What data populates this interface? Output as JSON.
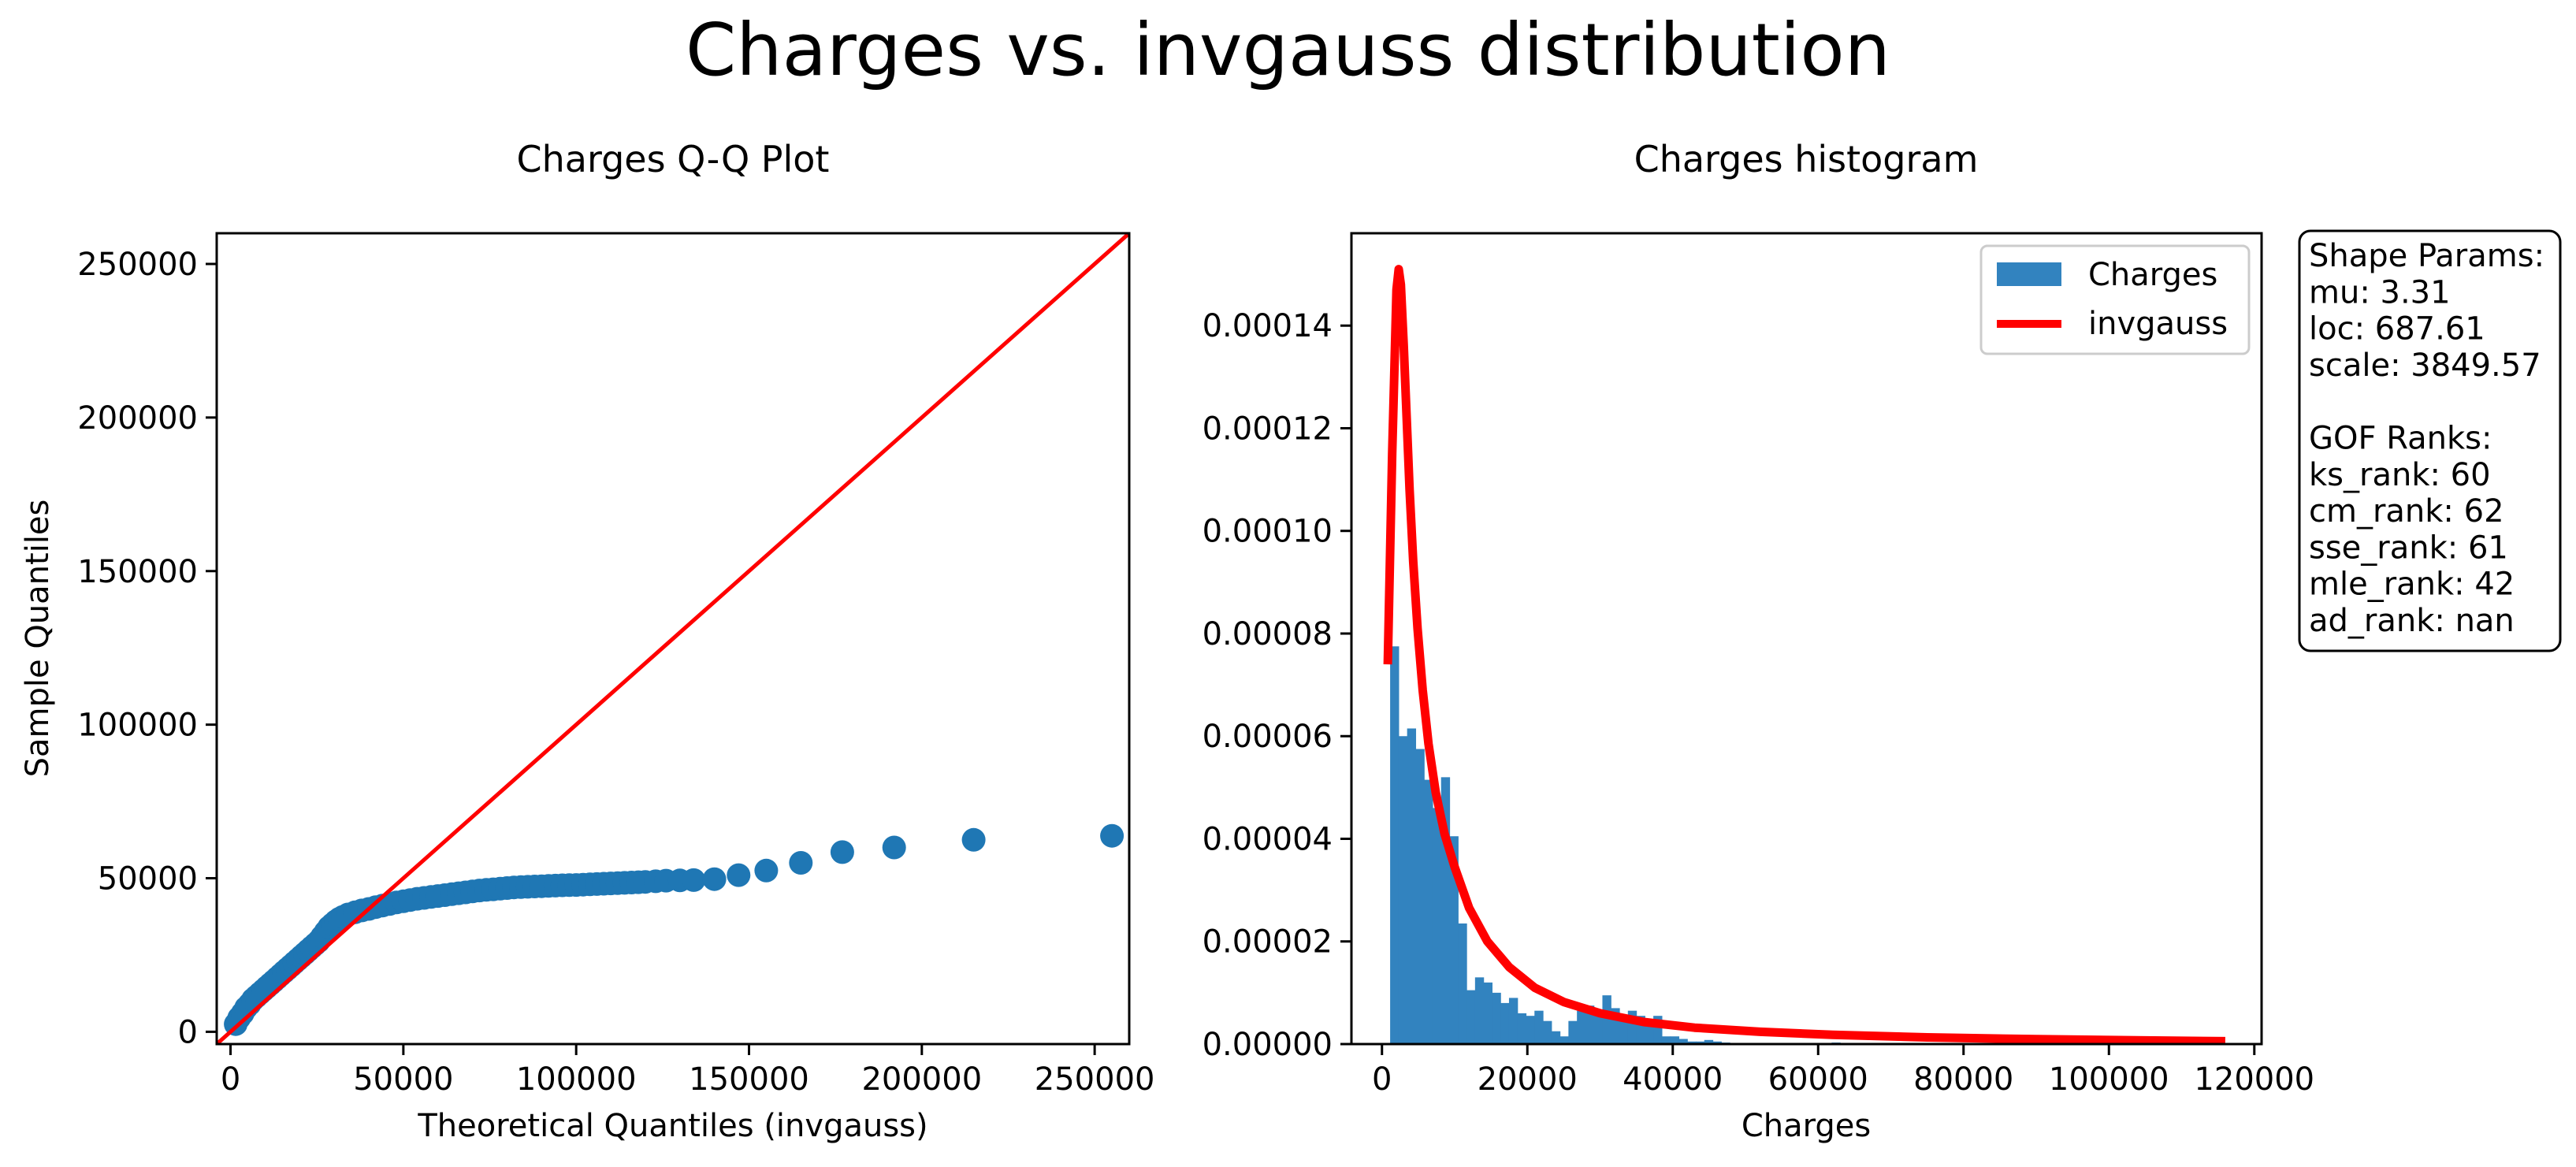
{
  "figure": {
    "suptitle": "Charges vs. invgauss distribution",
    "colors": {
      "points": "#1f77b4",
      "bars": "#3283bf",
      "fit_line": "#ff0000",
      "text": "#000000"
    }
  },
  "info_box": {
    "lines": [
      "Shape Params:",
      "mu: 3.31",
      "loc: 687.61",
      "scale: 3849.57",
      "",
      "GOF Ranks:",
      "ks_rank: 60",
      "cm_rank: 62",
      "sse_rank: 61",
      "mle_rank: 42",
      "ad_rank: nan"
    ]
  },
  "chart_data": [
    {
      "type": "scatter",
      "title": "Charges Q-Q Plot",
      "xlabel": "Theoretical Quantiles (invgauss)",
      "ylabel": "Sample Quantiles",
      "xlim": [
        -4000,
        260000
      ],
      "ylim": [
        -4000,
        260000
      ],
      "xticks": [
        0,
        50000,
        100000,
        150000,
        200000,
        250000
      ],
      "yticks": [
        0,
        50000,
        100000,
        150000,
        200000,
        250000
      ],
      "grid": false,
      "reference_line": {
        "from": [
          -4000,
          -4000
        ],
        "to": [
          260000,
          260000
        ]
      },
      "series": [
        {
          "x": [
            1500,
            2500,
            3500,
            4500,
            5500,
            6500,
            7500,
            8500,
            9500,
            10500,
            11500,
            12500,
            13500,
            14500,
            15500,
            16500,
            17500,
            18500,
            19500,
            20500,
            21500,
            22500,
            23500,
            24500,
            25500,
            26500,
            27500,
            28500,
            29500,
            30500,
            31500,
            32500,
            34000,
            36000,
            38000,
            40000,
            42000,
            44000,
            46000,
            48000,
            50000,
            52000,
            54000,
            56000,
            58000,
            60000,
            62000,
            64000,
            66000,
            68000,
            70000,
            72000,
            74000,
            76000,
            78000,
            80000,
            82000,
            84000,
            86000,
            88000,
            90000,
            92000,
            94000,
            96000,
            98000,
            100000,
            102000,
            104000,
            106000,
            108000,
            110000,
            112000,
            114000,
            116000,
            118000,
            120000,
            123000,
            126000,
            130000,
            134000,
            140000,
            147000,
            155000,
            165000,
            177000,
            192000,
            215000,
            255000
          ],
          "y": [
            2500,
            4500,
            6000,
            7800,
            9000,
            10500,
            11500,
            12500,
            13500,
            14500,
            15500,
            16500,
            17500,
            18500,
            19500,
            20500,
            21500,
            22500,
            23500,
            24500,
            25500,
            26500,
            27500,
            28500,
            29500,
            31000,
            32500,
            34000,
            35000,
            36000,
            36800,
            37400,
            38200,
            38900,
            39500,
            40000,
            40600,
            41100,
            41600,
            42100,
            42500,
            42900,
            43300,
            43600,
            43900,
            44200,
            44500,
            44800,
            45100,
            45400,
            45700,
            46000,
            46200,
            46400,
            46600,
            46800,
            47000,
            47100,
            47200,
            47300,
            47400,
            47500,
            47600,
            47700,
            47750,
            47800,
            47900,
            48000,
            48100,
            48200,
            48300,
            48400,
            48500,
            48600,
            48700,
            48800,
            49000,
            49200,
            49300,
            49400,
            49700,
            51000,
            52500,
            55000,
            58500,
            60000,
            62500,
            63800
          ]
        }
      ]
    },
    {
      "type": "bar",
      "title": "Charges histogram",
      "xlabel": "Charges",
      "ylabel": "",
      "xlim": [
        -4200,
        121000
      ],
      "ylim": [
        0,
        0.000158
      ],
      "xticks": [
        0,
        20000,
        40000,
        60000,
        80000,
        100000,
        120000
      ],
      "yticks": [
        0,
        2e-05,
        4e-05,
        6e-05,
        8e-05,
        0.0001,
        0.00012,
        0.00014
      ],
      "ytick_labels": [
        "0.00000",
        "0.00002",
        "0.00004",
        "0.00006",
        "0.00008",
        "0.00010",
        "0.00012",
        "0.00014"
      ],
      "grid": false,
      "legend": {
        "position": "top-right",
        "entries": [
          "Charges",
          "invgauss"
        ]
      },
      "bin_edges": [
        1122,
        2290,
        3458,
        4626,
        5794,
        6962,
        8130,
        9298,
        10466,
        11634,
        12802,
        13970,
        15138,
        16306,
        17474,
        18642,
        19810,
        20978,
        22146,
        23314,
        24482,
        25650,
        26818,
        27986,
        29154,
        30322,
        31490,
        32658,
        33826,
        34994,
        36162,
        37330,
        38498,
        39666,
        40834,
        42002,
        43170,
        44338,
        45506,
        46674,
        47842,
        49010,
        50178,
        51346,
        52514,
        53682,
        54850,
        56018,
        57186,
        58354,
        59522,
        60690,
        61858,
        63026,
        64194
      ],
      "series": [
        {
          "name": "Charges",
          "values": [
            7.75e-05,
            6e-05,
            6.15e-05,
            5.75e-05,
            5.15e-05,
            4.6e-05,
            5.2e-05,
            4.05e-05,
            2.35e-05,
            1.05e-05,
            1.3e-05,
            1.2e-05,
            1e-05,
            8e-06,
            9e-06,
            6e-06,
            5.5e-06,
            6.5e-06,
            4.5e-06,
            2.5e-06,
            1.5e-06,
            4.5e-06,
            6.5e-06,
            7.5e-06,
            6.5e-06,
            9.5e-06,
            7e-06,
            4.5e-06,
            6.5e-06,
            5.5e-06,
            3.5e-06,
            5.5e-06,
            1.5e-06,
            1.5e-06,
            1e-06,
            5e-07,
            5e-07,
            8e-07,
            5e-07,
            3e-07,
            2e-07,
            2e-07,
            0,
            0,
            2e-07,
            0,
            0,
            0,
            0,
            0,
            0,
            0,
            3e-07,
            2e-07
          ]
        },
        {
          "name": "invgauss",
          "x": [
            800,
            1400,
            2000,
            2300,
            2600,
            3000,
            3400,
            3800,
            4300,
            4900,
            5600,
            6400,
            7400,
            8600,
            10000,
            12000,
            14500,
            17500,
            21000,
            25000,
            30000,
            36000,
            43000,
            52000,
            62000,
            75000,
            90000,
            105000,
            116000
          ],
          "y": [
            7.4e-05,
            0.000115,
            0.000147,
            0.000151,
            0.000148,
            0.000136,
            0.000122,
            0.000108,
            9.4e-05,
            8.1e-05,
            6.9e-05,
            5.85e-05,
            4.9e-05,
            4.1e-05,
            3.45e-05,
            2.65e-05,
            2e-05,
            1.5e-05,
            1.1e-05,
            8.2e-06,
            6e-06,
            4.3e-06,
            3.2e-06,
            2.4e-06,
            1.8e-06,
            1.3e-06,
            9.5e-07,
            7e-07,
            5.5e-07
          ]
        }
      ]
    }
  ]
}
